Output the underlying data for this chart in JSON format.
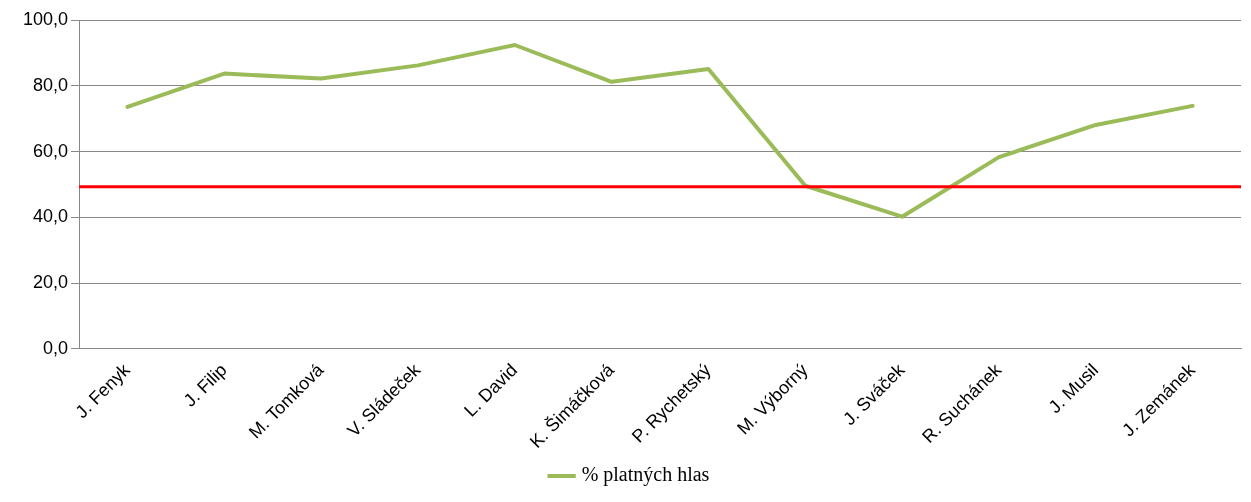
{
  "chart_data": {
    "type": "line",
    "categories": [
      "J. Fenyk",
      "J. Filip",
      "M. Tomková",
      "V. Sládeček",
      "L. David",
      "K. Šimáčková",
      "P. Rychetský",
      "M. Výborný",
      "J. Sváček",
      "R. Suchánek",
      "J. Musil",
      "J. Zemánek"
    ],
    "series": [
      {
        "name": "% platných hlas",
        "color": "#9bbb59",
        "values": [
          73.6,
          83.7,
          82.2,
          86.2,
          92.4,
          81.2,
          85.1,
          49.6,
          40.2,
          58.3,
          68.1,
          73.9
        ]
      }
    ],
    "ylim": [
      0,
      100
    ],
    "yticks": [
      {
        "value": 0,
        "label": "0,0"
      },
      {
        "value": 20,
        "label": "20,0"
      },
      {
        "value": 40,
        "label": "40,0"
      },
      {
        "value": 60,
        "label": "60,0"
      },
      {
        "value": 80,
        "label": "80,0"
      },
      {
        "value": 100,
        "label": "100,0"
      }
    ],
    "ref_lines": [
      {
        "axis": "y",
        "value": 49.3,
        "color": "#ff0000"
      }
    ],
    "grid": "y",
    "legend": "bottom",
    "marker": "none",
    "line_style": "solid"
  }
}
